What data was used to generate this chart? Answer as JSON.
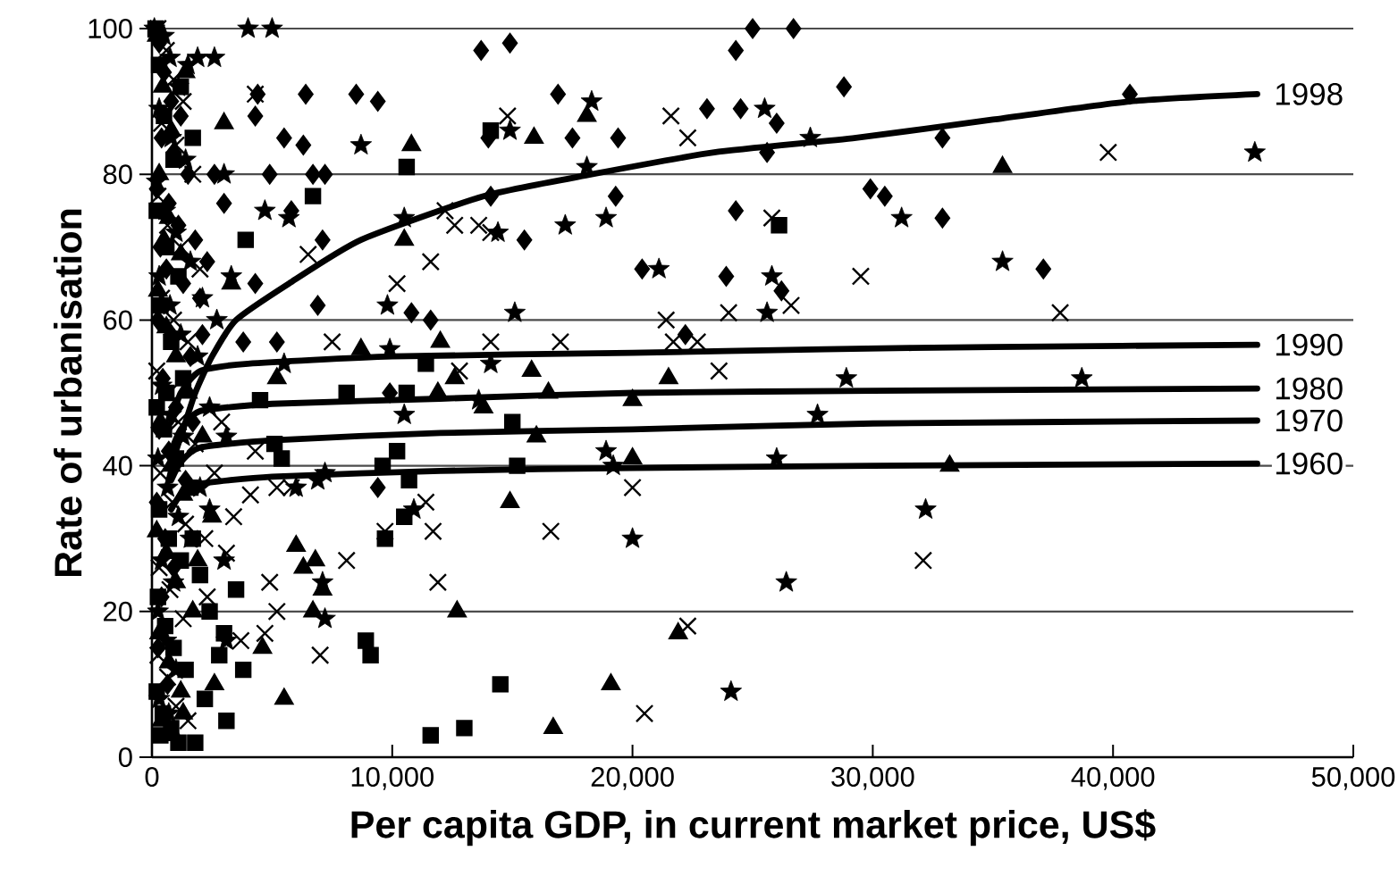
{
  "chart_data": {
    "type": "scatter",
    "xlabel": "Per capita GDP, in current market price, US$",
    "ylabel": "Rate of urbanisation",
    "xlim": [
      0,
      50000
    ],
    "ylim": [
      0,
      100
    ],
    "xticks": [
      0,
      {
        "value": 10000,
        "label": "10,000"
      },
      {
        "value": 20000,
        "label": "20,000"
      },
      {
        "value": 30000,
        "label": "30,000"
      },
      {
        "value": 40000,
        "label": "40,000"
      },
      {
        "value": 50000,
        "label": "50,000"
      }
    ],
    "yticks": [
      0,
      20,
      40,
      60,
      80,
      100
    ],
    "grid": "y",
    "series": [
      {
        "marker": "diamond",
        "color": "#000000",
        "x": [
          25000,
          26700,
          24300,
          13700,
          14900,
          28800,
          9400,
          16900,
          23100,
          24500,
          26000,
          14000,
          17500,
          19400,
          25600,
          14100,
          19300,
          24300,
          15500,
          20400,
          23900,
          26200,
          10800,
          11600,
          22200,
          32900,
          40700,
          29900,
          30500,
          32900,
          37100,
          9400,
          9900,
          6400,
          8500,
          4400,
          4300,
          5500,
          6300,
          4900,
          6700,
          7200,
          5800,
          7100,
          4300,
          6900,
          3800,
          5200,
          300,
          500,
          800,
          1200,
          400,
          900,
          1500,
          200,
          700,
          1100,
          1800,
          350,
          600,
          1300,
          2000,
          250,
          800,
          1600,
          450,
          1000,
          300,
          700,
          1400,
          200,
          550,
          900,
          400,
          250,
          650,
          2300,
          2600,
          3000,
          2100,
          1700
        ],
        "values": [
          100,
          100,
          97,
          97,
          98,
          92,
          90,
          91,
          89,
          89,
          87,
          85,
          85,
          85,
          83,
          77,
          77,
          75,
          71,
          67,
          66,
          64,
          61,
          60,
          58,
          85,
          91,
          78,
          77,
          74,
          67,
          37,
          50,
          91,
          91,
          91,
          88,
          85,
          84,
          80,
          80,
          80,
          75,
          71,
          65,
          62,
          57,
          57,
          98,
          94,
          90,
          88,
          85,
          83,
          80,
          78,
          76,
          73,
          71,
          70,
          67,
          65,
          63,
          60,
          58,
          55,
          52,
          48,
          45,
          42,
          38,
          35,
          30,
          26,
          22,
          15,
          10,
          68,
          80,
          76,
          58,
          46
        ]
      },
      {
        "marker": "square",
        "color": "#000000",
        "x": [
          10600,
          14100,
          26100,
          11400,
          10600,
          15000,
          10200,
          9600,
          15200,
          10700,
          10500,
          9700,
          9100,
          14500,
          11600,
          13000,
          6700,
          8900,
          3900,
          1700,
          1200,
          3500,
          3000,
          3800,
          3100,
          1800,
          5100,
          5400,
          4500,
          8100,
          150,
          300,
          500,
          900,
          200,
          600,
          1100,
          350,
          800,
          1300,
          200,
          500,
          1000,
          1600,
          300,
          700,
          1200,
          2000,
          250,
          550,
          900,
          1400,
          200,
          450,
          800,
          1100,
          2400,
          2800,
          2200,
          350,
          1700,
          600
        ],
        "values": [
          81,
          86,
          73,
          54,
          50,
          46,
          42,
          40,
          40,
          38,
          33,
          30,
          14,
          10,
          3,
          4,
          77,
          16,
          71,
          85,
          92,
          23,
          17,
          12,
          5,
          2,
          43,
          41,
          49,
          50,
          100,
          95,
          88,
          82,
          75,
          70,
          66,
          62,
          57,
          52,
          48,
          45,
          41,
          37,
          34,
          30,
          27,
          25,
          22,
          18,
          15,
          12,
          9,
          6,
          4,
          2,
          20,
          14,
          8,
          3,
          30,
          50
        ]
      },
      {
        "marker": "triangle",
        "color": "#000000",
        "x": [
          10800,
          15900,
          18100,
          10500,
          12000,
          15800,
          12600,
          21500,
          8700,
          16000,
          20000,
          14900,
          12700,
          21900,
          19100,
          16700,
          11900,
          13800,
          16500,
          20000,
          35400,
          33200,
          3000,
          1400,
          6700,
          5500,
          6000,
          6800,
          6300,
          7100,
          4600,
          2600,
          3300,
          5200,
          1300,
          200,
          450,
          800,
          300,
          700,
          1200,
          250,
          600,
          1000,
          1500,
          350,
          800,
          1300,
          200,
          600,
          1000,
          1700,
          300,
          700,
          1200,
          400,
          900,
          2500,
          2100,
          1900,
          500
        ],
        "values": [
          84,
          85,
          88,
          71,
          57,
          53,
          52,
          52,
          56,
          44,
          41,
          35,
          20,
          17,
          10,
          4,
          50,
          48,
          50,
          49,
          81,
          40,
          87,
          94,
          20,
          8,
          29,
          27,
          26,
          23,
          15,
          10,
          65,
          52,
          6,
          99,
          92,
          86,
          80,
          74,
          69,
          64,
          59,
          55,
          50,
          46,
          40,
          36,
          31,
          28,
          24,
          20,
          17,
          13,
          9,
          5,
          3,
          33,
          44,
          27,
          71
        ]
      },
      {
        "marker": "cross",
        "color": "#000000",
        "x": [
          14800,
          21600,
          22300,
          12200,
          12600,
          13600,
          14100,
          25800,
          11600,
          10200,
          21400,
          24000,
          26600,
          17000,
          14100,
          22700,
          21700,
          23600,
          12800,
          11400,
          11700,
          16600,
          20000,
          11900,
          22300,
          20500,
          9700,
          39800,
          29500,
          37800,
          32100,
          4300,
          6500,
          7500,
          8100,
          7000,
          4700,
          5200,
          4900,
          3700,
          5200,
          5800,
          4300,
          4100,
          3400,
          250,
          600,
          900,
          1300,
          400,
          1000,
          1700,
          250,
          650,
          1200,
          2000,
          400,
          900,
          1500,
          200,
          700,
          1100,
          1800,
          350,
          850,
          1400,
          2200,
          300,
          750,
          1300,
          250,
          650,
          1000,
          1500,
          2600,
          2900,
          2300,
          3100
        ],
        "values": [
          88,
          88,
          85,
          75,
          73,
          73,
          72,
          74,
          68,
          65,
          60,
          61,
          62,
          57,
          57,
          57,
          57,
          53,
          53,
          35,
          31,
          31,
          37,
          24,
          18,
          6,
          31,
          83,
          66,
          61,
          27,
          91,
          69,
          57,
          27,
          14,
          17,
          20,
          24,
          16,
          37,
          37,
          42,
          36,
          33,
          100,
          97,
          93,
          90,
          87,
          84,
          80,
          77,
          73,
          70,
          67,
          63,
          60,
          57,
          53,
          50,
          46,
          43,
          39,
          35,
          32,
          30,
          26,
          23,
          19,
          14,
          11,
          7,
          5,
          39,
          46,
          22,
          28
        ]
      },
      {
        "marker": "star",
        "color": "#000000",
        "x": [
          18300,
          14900,
          25500,
          27400,
          18100,
          10500,
          14400,
          17200,
          18900,
          21100,
          25800,
          9800,
          15100,
          25600,
          9900,
          14100,
          28900,
          10500,
          13600,
          18900,
          19200,
          26000,
          20000,
          26400,
          24100,
          10900,
          27700,
          31200,
          45900,
          35400,
          38700,
          32200,
          4000,
          5000,
          2600,
          1900,
          1500,
          3000,
          8700,
          5700,
          4700,
          5500,
          6900,
          6000,
          7200,
          7100,
          7200,
          3100,
          3000,
          2400,
          3100,
          100,
          500,
          750,
          1100,
          300,
          800,
          1400,
          200,
          550,
          1000,
          1600,
          300,
          750,
          1200,
          1900,
          400,
          800,
          1300,
          250,
          650,
          1100,
          1600,
          400,
          900,
          250,
          600,
          1000,
          300,
          700,
          2100,
          2700,
          2400,
          2000,
          3300
        ],
        "values": [
          90,
          86,
          89,
          85,
          81,
          74,
          72,
          73,
          74,
          67,
          66,
          62,
          61,
          61,
          56,
          54,
          52,
          47,
          49,
          42,
          40,
          41,
          30,
          24,
          9,
          34,
          47,
          74,
          83,
          68,
          52,
          34,
          100,
          100,
          96,
          96,
          95,
          80,
          84,
          74,
          75,
          54,
          38,
          37,
          39,
          24,
          19,
          16,
          27,
          34,
          44,
          100,
          99,
          96,
          92,
          89,
          85,
          82,
          79,
          75,
          72,
          68,
          66,
          62,
          58,
          55,
          51,
          47,
          44,
          41,
          37,
          33,
          30,
          27,
          24,
          20,
          16,
          12,
          8,
          6,
          63,
          60,
          48,
          37,
          66
        ]
      },
      {
        "type": "line",
        "name": "1960",
        "marker": "none",
        "color": "#000000",
        "x": [
          800,
          1200,
          2000,
          5000,
          12000,
          20000,
          30000,
          46000
        ],
        "values": [
          34,
          36,
          37.5,
          38.5,
          39.3,
          39.7,
          40,
          40.3
        ]
      },
      {
        "type": "line",
        "name": "1970",
        "marker": "none",
        "color": "#000000",
        "x": [
          800,
          1200,
          2000,
          5000,
          12000,
          20000,
          30000,
          46000
        ],
        "values": [
          38,
          40.5,
          42.5,
          43.5,
          44.5,
          45,
          45.8,
          46.2
        ]
      },
      {
        "type": "line",
        "name": "1980",
        "marker": "none",
        "color": "#000000",
        "x": [
          800,
          1200,
          2000,
          5000,
          12000,
          20000,
          30000,
          46000
        ],
        "values": [
          42,
          45,
          47.5,
          48.5,
          49.2,
          50,
          50.3,
          50.6
        ]
      },
      {
        "type": "line",
        "name": "1990",
        "marker": "none",
        "color": "#000000",
        "x": [
          800,
          1200,
          2000,
          4000,
          10000,
          20000,
          28000,
          35000,
          46000
        ],
        "values": [
          46,
          50,
          53,
          54,
          55,
          55.5,
          56,
          56.3,
          56.6
        ]
      },
      {
        "type": "line",
        "name": "1998",
        "marker": "none",
        "color": "#000000",
        "x": [
          700,
          1000,
          1300,
          1800,
          2500,
          3500,
          5700,
          8700,
          13800,
          18300,
          23400,
          29300,
          35000,
          40700,
          46000
        ],
        "values": [
          38,
          42,
          45,
          50,
          55,
          60,
          65,
          71,
          77,
          80,
          83,
          85,
          87.5,
          90,
          91
        ]
      }
    ]
  }
}
